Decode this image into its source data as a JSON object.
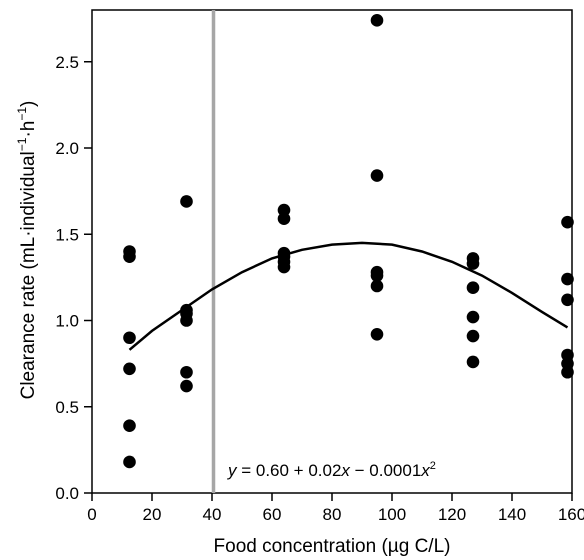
{
  "chart_data": {
    "type": "scatter",
    "xlabel": "Food concentration (µg C/L)",
    "ylabel": "Clearance rate (mL·individual⁻¹·h⁻¹)",
    "xlim": [
      0,
      160
    ],
    "ylim": [
      0,
      2.8
    ],
    "xticks": [
      0,
      20,
      40,
      60,
      80,
      100,
      120,
      140,
      160
    ],
    "yticks": [
      0.0,
      0.5,
      1.0,
      1.5,
      2.0,
      2.5
    ],
    "xtick_labels": [
      "0",
      "20",
      "40",
      "60",
      "80",
      "100",
      "120",
      "140",
      "160"
    ],
    "ytick_labels": [
      "0.0",
      "0.5",
      "1.0",
      "1.5",
      "2.0",
      "2.5"
    ],
    "grid": false,
    "points": [
      {
        "x": 12.5,
        "y": 1.4
      },
      {
        "x": 12.5,
        "y": 1.37
      },
      {
        "x": 12.5,
        "y": 0.9
      },
      {
        "x": 12.5,
        "y": 0.72
      },
      {
        "x": 12.5,
        "y": 0.39
      },
      {
        "x": 12.5,
        "y": 0.18
      },
      {
        "x": 31.5,
        "y": 1.69
      },
      {
        "x": 31.5,
        "y": 1.06
      },
      {
        "x": 31.5,
        "y": 1.04
      },
      {
        "x": 31.5,
        "y": 1.0
      },
      {
        "x": 31.5,
        "y": 0.7
      },
      {
        "x": 31.5,
        "y": 0.62
      },
      {
        "x": 64,
        "y": 1.64
      },
      {
        "x": 64,
        "y": 1.59
      },
      {
        "x": 64,
        "y": 1.39
      },
      {
        "x": 64,
        "y": 1.37
      },
      {
        "x": 64,
        "y": 1.34
      },
      {
        "x": 64,
        "y": 1.31
      },
      {
        "x": 95,
        "y": 2.74
      },
      {
        "x": 95,
        "y": 1.84
      },
      {
        "x": 95,
        "y": 1.28
      },
      {
        "x": 95,
        "y": 1.26
      },
      {
        "x": 95,
        "y": 1.2
      },
      {
        "x": 95,
        "y": 0.92
      },
      {
        "x": 127,
        "y": 1.36
      },
      {
        "x": 127,
        "y": 1.33
      },
      {
        "x": 127,
        "y": 1.19
      },
      {
        "x": 127,
        "y": 1.02
      },
      {
        "x": 127,
        "y": 0.91
      },
      {
        "x": 127,
        "y": 0.76
      },
      {
        "x": 158.5,
        "y": 1.57
      },
      {
        "x": 158.5,
        "y": 1.24
      },
      {
        "x": 158.5,
        "y": 1.12
      },
      {
        "x": 158.5,
        "y": 0.8
      },
      {
        "x": 158.5,
        "y": 0.75
      },
      {
        "x": 158.5,
        "y": 0.7
      }
    ],
    "fit_curve": {
      "equation_text": "y = 0.60 + 0.02x − 0.0001x²",
      "x_range": [
        12.5,
        158.5
      ],
      "samples": [
        {
          "x": 12.5,
          "y": 0.83
        },
        {
          "x": 20,
          "y": 0.94
        },
        {
          "x": 30,
          "y": 1.06
        },
        {
          "x": 40,
          "y": 1.18
        },
        {
          "x": 50,
          "y": 1.28
        },
        {
          "x": 60,
          "y": 1.36
        },
        {
          "x": 70,
          "y": 1.41
        },
        {
          "x": 80,
          "y": 1.44
        },
        {
          "x": 90,
          "y": 1.45
        },
        {
          "x": 100,
          "y": 1.44
        },
        {
          "x": 110,
          "y": 1.4
        },
        {
          "x": 120,
          "y": 1.34
        },
        {
          "x": 130,
          "y": 1.26
        },
        {
          "x": 140,
          "y": 1.16
        },
        {
          "x": 150,
          "y": 1.05
        },
        {
          "x": 158.5,
          "y": 0.96
        }
      ]
    },
    "reference_line": {
      "x": 40.5,
      "color": "#a6a6a6"
    },
    "colors": {
      "points": "#000000",
      "curve": "#000000",
      "axes": "#000000"
    }
  }
}
